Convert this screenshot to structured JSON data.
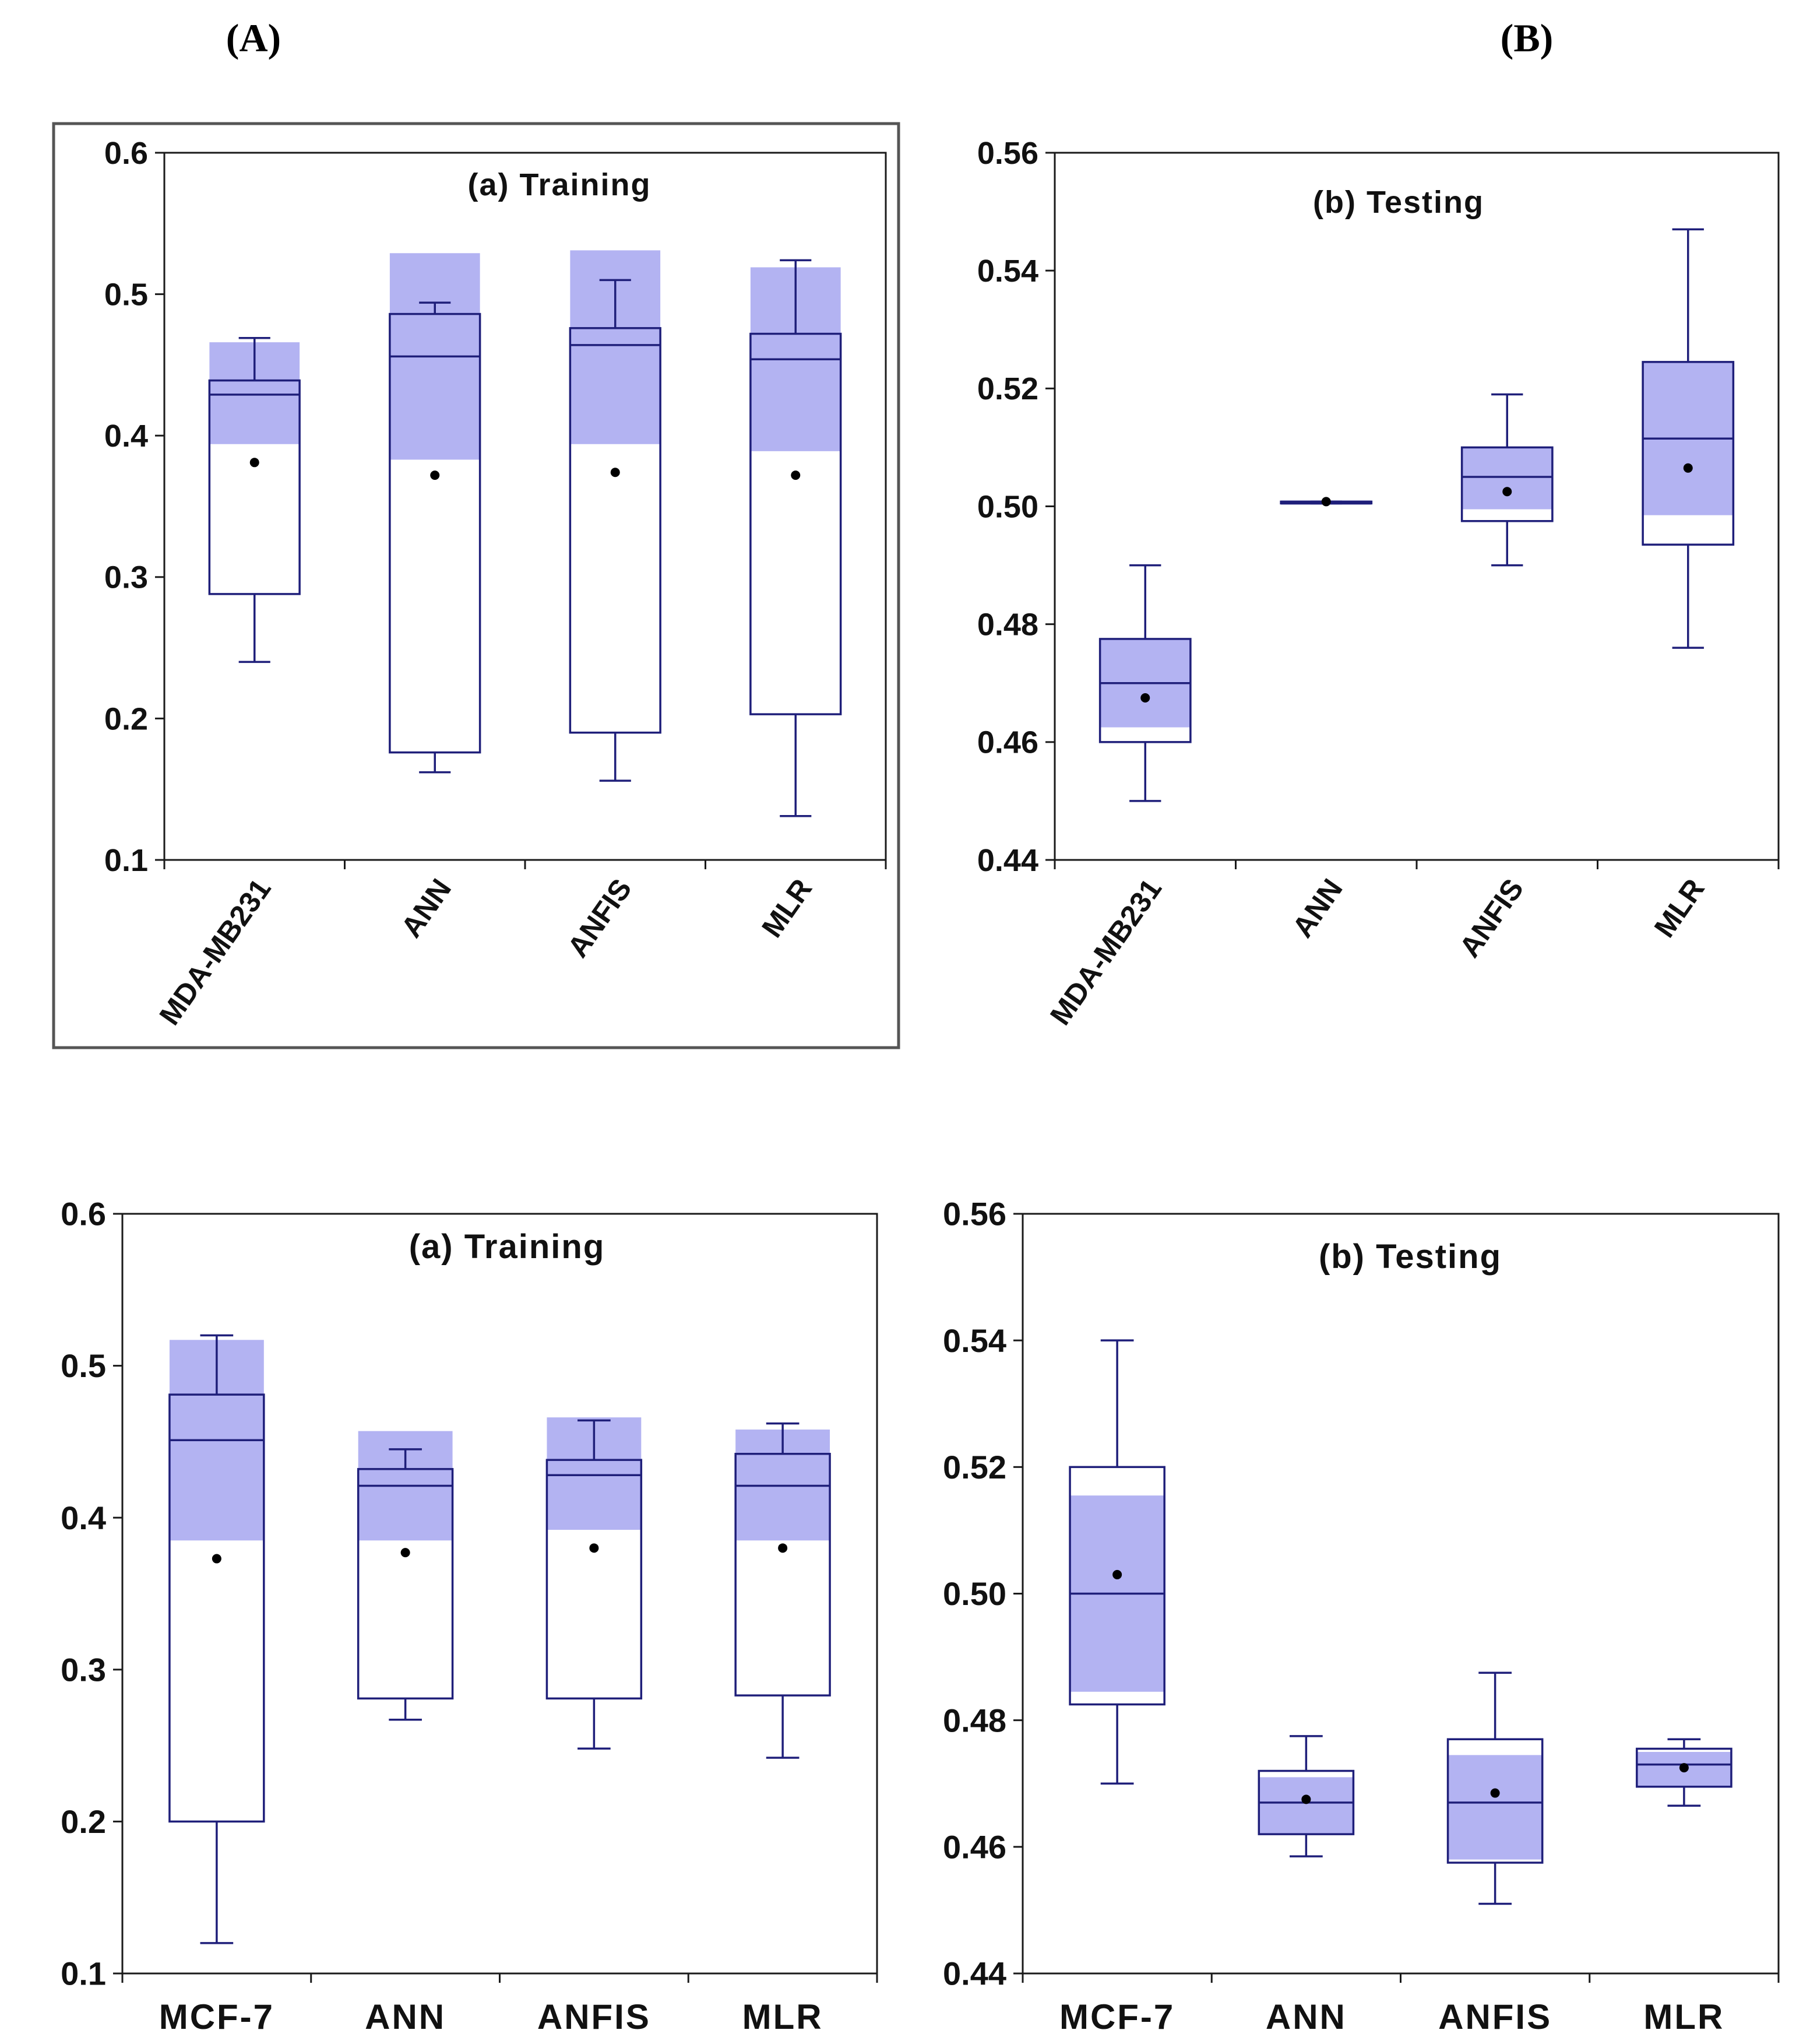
{
  "panel_labels": {
    "a": "(A)",
    "b": "(B)"
  },
  "chart_data": [
    {
      "type": "box",
      "title": "(a) Training",
      "categories": [
        "MDA-MB231",
        "ANN",
        "ANFIS",
        "MLR"
      ],
      "ylim": [
        0.1,
        0.6
      ],
      "yticks": [
        0.1,
        0.2,
        0.3,
        0.4,
        0.5,
        0.6
      ],
      "ytick_labels": [
        "0.1",
        "0.2",
        "0.3",
        "0.4",
        "0.5",
        "0.6"
      ],
      "rotated_labels": true,
      "boxes": [
        {
          "whisker_low": 0.24,
          "q1": 0.288,
          "median": 0.429,
          "q3": 0.439,
          "whisker_high": 0.469,
          "mean": 0.381,
          "ci_low": 0.394,
          "ci_high": 0.466
        },
        {
          "whisker_low": 0.162,
          "q1": 0.176,
          "median": 0.456,
          "q3": 0.486,
          "whisker_high": 0.494,
          "mean": 0.372,
          "ci_low": 0.383,
          "ci_high": 0.529
        },
        {
          "whisker_low": 0.156,
          "q1": 0.19,
          "median": 0.464,
          "q3": 0.476,
          "whisker_high": 0.51,
          "mean": 0.374,
          "ci_low": 0.394,
          "ci_high": 0.531
        },
        {
          "whisker_low": 0.131,
          "q1": 0.203,
          "median": 0.454,
          "q3": 0.472,
          "whisker_high": 0.524,
          "mean": 0.372,
          "ci_low": 0.389,
          "ci_high": 0.519
        }
      ]
    },
    {
      "type": "box",
      "title": "(b) Testing",
      "categories": [
        "MDA-MB231",
        "ANN",
        "ANFIS",
        "MLR"
      ],
      "ylim": [
        0.44,
        0.56
      ],
      "yticks": [
        0.44,
        0.46,
        0.48,
        0.5,
        0.52,
        0.54,
        0.56
      ],
      "ytick_labels": [
        "0.44",
        "0.46",
        "0.48",
        "0.50",
        "0.52",
        "0.54",
        "0.56"
      ],
      "rotated_labels": true,
      "boxes": [
        {
          "whisker_low": 0.45,
          "q1": 0.46,
          "median": 0.47,
          "q3": 0.4775,
          "whisker_high": 0.49,
          "mean": 0.4675,
          "ci_low": 0.4625,
          "ci_high": 0.4775
        },
        {
          "whisker_low": 0.5005,
          "q1": 0.5005,
          "median": 0.5005,
          "q3": 0.5008,
          "whisker_high": 0.5008,
          "mean": 0.5008,
          "ci_low": 0.5003,
          "ci_high": 0.501
        },
        {
          "whisker_low": 0.49,
          "q1": 0.4975,
          "median": 0.505,
          "q3": 0.51,
          "whisker_high": 0.519,
          "mean": 0.5025,
          "ci_low": 0.4995,
          "ci_high": 0.51
        },
        {
          "whisker_low": 0.476,
          "q1": 0.4935,
          "median": 0.5115,
          "q3": 0.5245,
          "whisker_high": 0.547,
          "mean": 0.5065,
          "ci_low": 0.4985,
          "ci_high": 0.5245
        }
      ]
    },
    {
      "type": "box",
      "title": "(a) Training",
      "categories": [
        "MCF-7",
        "ANN",
        "ANFIS",
        "MLR"
      ],
      "ylim": [
        0.1,
        0.6
      ],
      "yticks": [
        0.1,
        0.2,
        0.3,
        0.4,
        0.5,
        0.6
      ],
      "ytick_labels": [
        "0.1",
        "0.2",
        "0.3",
        "0.4",
        "0.5",
        "0.6"
      ],
      "rotated_labels": false,
      "boxes": [
        {
          "whisker_low": 0.12,
          "q1": 0.2,
          "median": 0.451,
          "q3": 0.481,
          "whisker_high": 0.52,
          "mean": 0.373,
          "ci_low": 0.385,
          "ci_high": 0.517
        },
        {
          "whisker_low": 0.267,
          "q1": 0.281,
          "median": 0.421,
          "q3": 0.432,
          "whisker_high": 0.445,
          "mean": 0.377,
          "ci_low": 0.385,
          "ci_high": 0.457
        },
        {
          "whisker_low": 0.248,
          "q1": 0.281,
          "median": 0.428,
          "q3": 0.438,
          "whisker_high": 0.464,
          "mean": 0.38,
          "ci_low": 0.392,
          "ci_high": 0.466
        },
        {
          "whisker_low": 0.242,
          "q1": 0.283,
          "median": 0.421,
          "q3": 0.442,
          "whisker_high": 0.462,
          "mean": 0.38,
          "ci_low": 0.385,
          "ci_high": 0.458
        }
      ]
    },
    {
      "type": "box",
      "title": "(b) Testing",
      "categories": [
        "MCF-7",
        "ANN",
        "ANFIS",
        "MLR"
      ],
      "ylim": [
        0.44,
        0.56
      ],
      "yticks": [
        0.44,
        0.46,
        0.48,
        0.5,
        0.52,
        0.54,
        0.56
      ],
      "ytick_labels": [
        "0.44",
        "0.46",
        "0.48",
        "0.50",
        "0.52",
        "0.54",
        "0.56"
      ],
      "rotated_labels": false,
      "boxes": [
        {
          "whisker_low": 0.47,
          "q1": 0.4825,
          "median": 0.5,
          "q3": 0.52,
          "whisker_high": 0.54,
          "mean": 0.503,
          "ci_low": 0.4845,
          "ci_high": 0.5155
        },
        {
          "whisker_low": 0.4585,
          "q1": 0.462,
          "median": 0.467,
          "q3": 0.472,
          "whisker_high": 0.4775,
          "mean": 0.4675,
          "ci_low": 0.462,
          "ci_high": 0.471
        },
        {
          "whisker_low": 0.451,
          "q1": 0.4575,
          "median": 0.467,
          "q3": 0.477,
          "whisker_high": 0.4875,
          "mean": 0.4685,
          "ci_low": 0.458,
          "ci_high": 0.4745
        },
        {
          "whisker_low": 0.4665,
          "q1": 0.4695,
          "median": 0.473,
          "q3": 0.4755,
          "whisker_high": 0.477,
          "mean": 0.4725,
          "ci_low": 0.4695,
          "ci_high": 0.475
        }
      ]
    }
  ],
  "colors": {
    "box_line": "#1f1f7a",
    "ci_fill": "#b3b3f2",
    "mean_dot": "#000000",
    "axis": "#1a1a1a",
    "frame": "#555555"
  }
}
